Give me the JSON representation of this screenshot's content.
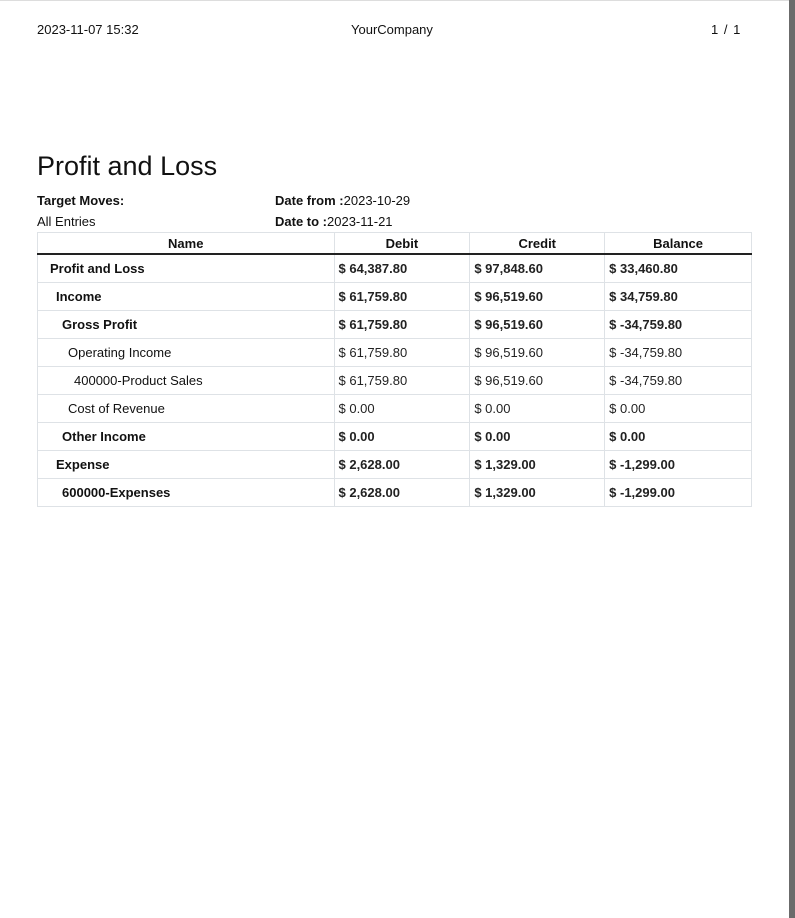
{
  "header": {
    "datetime": "2023-11-07 15:32",
    "company": "YourCompany",
    "page": "1 / 1"
  },
  "title": "Profit and Loss",
  "filters": {
    "target_moves_label": "Target Moves:",
    "target_moves_value": "All Entries",
    "date_from_label": "Date from :",
    "date_from": "2023-10-29",
    "date_to_label": "Date to :",
    "date_to": "2023-11-21"
  },
  "table": {
    "columns": [
      "Name",
      "Debit",
      "Credit",
      "Balance"
    ],
    "rows": [
      {
        "name": "Profit and Loss",
        "debit": "$ 64,387.80",
        "credit": "$ 97,848.60",
        "balance": "$ 33,460.80",
        "bold": true,
        "level": 1
      },
      {
        "name": "Income",
        "debit": "$ 61,759.80",
        "credit": "$ 96,519.60",
        "balance": "$ 34,759.80",
        "bold": true,
        "level": 2
      },
      {
        "name": "Gross Profit",
        "debit": "$ 61,759.80",
        "credit": "$ 96,519.60",
        "balance": "$ -34,759.80",
        "bold": true,
        "level": 3
      },
      {
        "name": "Operating Income",
        "debit": "$ 61,759.80",
        "credit": "$ 96,519.60",
        "balance": "$ -34,759.80",
        "bold": false,
        "level": 4
      },
      {
        "name": "400000-Product Sales",
        "debit": "$ 61,759.80",
        "credit": "$ 96,519.60",
        "balance": "$ -34,759.80",
        "bold": false,
        "level": 5
      },
      {
        "name": "Cost of Revenue",
        "debit": "$ 0.00",
        "credit": "$ 0.00",
        "balance": "$ 0.00",
        "bold": false,
        "level": 4
      },
      {
        "name": "Other Income",
        "debit": "$ 0.00",
        "credit": "$ 0.00",
        "balance": "$ 0.00",
        "bold": true,
        "level": 3
      },
      {
        "name": "Expense",
        "debit": "$ 2,628.00",
        "credit": "$ 1,329.00",
        "balance": "$ -1,299.00",
        "bold": true,
        "level": 2
      },
      {
        "name": "600000-Expenses",
        "debit": "$ 2,628.00",
        "credit": "$ 1,329.00",
        "balance": "$ -1,299.00",
        "bold": true,
        "level": 3
      }
    ]
  }
}
